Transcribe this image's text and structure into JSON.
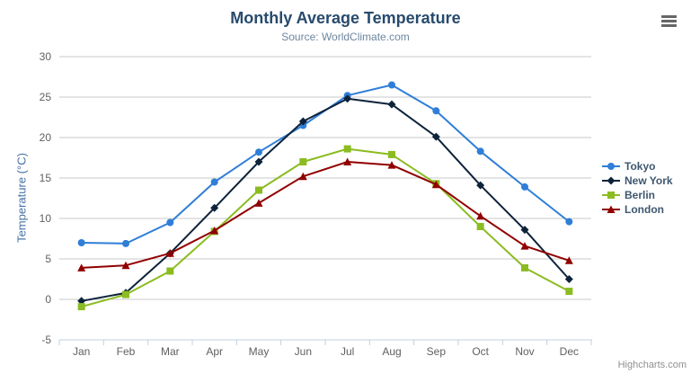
{
  "chart": {
    "title": "Monthly Average Temperature",
    "subtitle": "Source: WorldClimate.com",
    "credits": "Highcharts.com",
    "context_menu_icon": "hamburger-menu-icon"
  },
  "chart_data": {
    "type": "line",
    "title": "Monthly Average Temperature",
    "subtitle": "Source: WorldClimate.com",
    "xlabel": "",
    "ylabel": "Temperature (°C)",
    "ylim": [
      -5,
      30
    ],
    "ytick_step": 5,
    "yticks": [
      -5,
      0,
      5,
      10,
      15,
      20,
      25,
      30
    ],
    "grid": true,
    "legend_position": "right",
    "categories": [
      "Jan",
      "Feb",
      "Mar",
      "Apr",
      "May",
      "Jun",
      "Jul",
      "Aug",
      "Sep",
      "Oct",
      "Nov",
      "Dec"
    ],
    "series": [
      {
        "name": "Tokyo",
        "color": "#2f7ed8",
        "marker": "circle",
        "values": [
          7.0,
          6.9,
          9.5,
          14.5,
          18.2,
          21.5,
          25.2,
          26.5,
          23.3,
          18.3,
          13.9,
          9.6
        ]
      },
      {
        "name": "New York",
        "color": "#0d233a",
        "marker": "diamond",
        "values": [
          -0.2,
          0.8,
          5.7,
          11.3,
          17.0,
          22.0,
          24.8,
          24.1,
          20.1,
          14.1,
          8.6,
          2.5
        ]
      },
      {
        "name": "Berlin",
        "color": "#8bbc21",
        "marker": "square",
        "values": [
          -0.9,
          0.6,
          3.5,
          8.4,
          13.5,
          17.0,
          18.6,
          17.9,
          14.3,
          9.0,
          3.9,
          1.0
        ]
      },
      {
        "name": "London",
        "color": "#910000",
        "marker": "triangle",
        "values": [
          3.9,
          4.2,
          5.7,
          8.5,
          11.9,
          15.2,
          17.0,
          16.6,
          14.2,
          10.3,
          6.6,
          4.8
        ]
      }
    ],
    "colors": {
      "grid_line": "#c8c8c8",
      "axis_line": "#c0d0e0",
      "tick_mark": "#c0d0e0",
      "axis_label": "#606060",
      "title_text": "#274b6d",
      "subtitle_text": "#6d869f",
      "y_axis_title_text": "#4572a7",
      "legend_text": "#3e576f",
      "credits_text": "#909090"
    }
  }
}
